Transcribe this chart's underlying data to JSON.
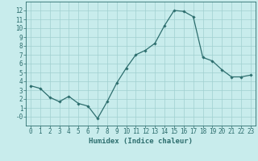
{
  "x": [
    0,
    1,
    2,
    3,
    4,
    5,
    6,
    7,
    8,
    9,
    10,
    11,
    12,
    13,
    14,
    15,
    16,
    17,
    18,
    19,
    20,
    21,
    22,
    23
  ],
  "y": [
    3.5,
    3.2,
    2.2,
    1.7,
    2.3,
    1.5,
    1.2,
    -0.2,
    1.7,
    3.8,
    5.5,
    7.0,
    7.5,
    8.3,
    10.3,
    12.0,
    11.9,
    11.3,
    6.7,
    6.3,
    5.3,
    4.5,
    4.5,
    4.7
  ],
  "line_color": "#2d6e6e",
  "marker": "D",
  "marker_size": 1.8,
  "xlabel": "Humidex (Indice chaleur)",
  "xlim": [
    -0.5,
    23.5
  ],
  "ylim": [
    -1,
    13
  ],
  "yticks": [
    0,
    1,
    2,
    3,
    4,
    5,
    6,
    7,
    8,
    9,
    10,
    11,
    12
  ],
  "xticks": [
    0,
    1,
    2,
    3,
    4,
    5,
    6,
    7,
    8,
    9,
    10,
    11,
    12,
    13,
    14,
    15,
    16,
    17,
    18,
    19,
    20,
    21,
    22,
    23
  ],
  "bg_color": "#c8ecec",
  "grid_color": "#a0d0d0",
  "tick_color": "#2d6e6e",
  "label_color": "#2d6e6e",
  "xlabel_fontsize": 6.5,
  "tick_fontsize": 5.5,
  "linewidth": 0.9
}
